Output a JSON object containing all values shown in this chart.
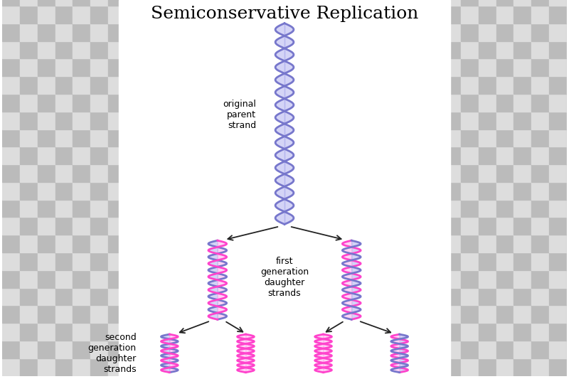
{
  "title": "Semiconservative Replication",
  "title_fontsize": 18,
  "blue_color": "#7777cc",
  "blue_fill": "#aaaaee",
  "pink_color": "#ff44cc",
  "pink_fill": "#ffaaee",
  "label_fontsize": 9,
  "original_parent_label": "original\nparent\nstrand",
  "first_gen_label": "first\ngeneration\ndaughter\nstrands",
  "second_gen_label": "second\ngeneration\ndaughter\nstrands",
  "arrow_color": "#222222",
  "checker_light": "#dddddd",
  "checker_dark": "#bbbbbb",
  "checker_size": 25
}
